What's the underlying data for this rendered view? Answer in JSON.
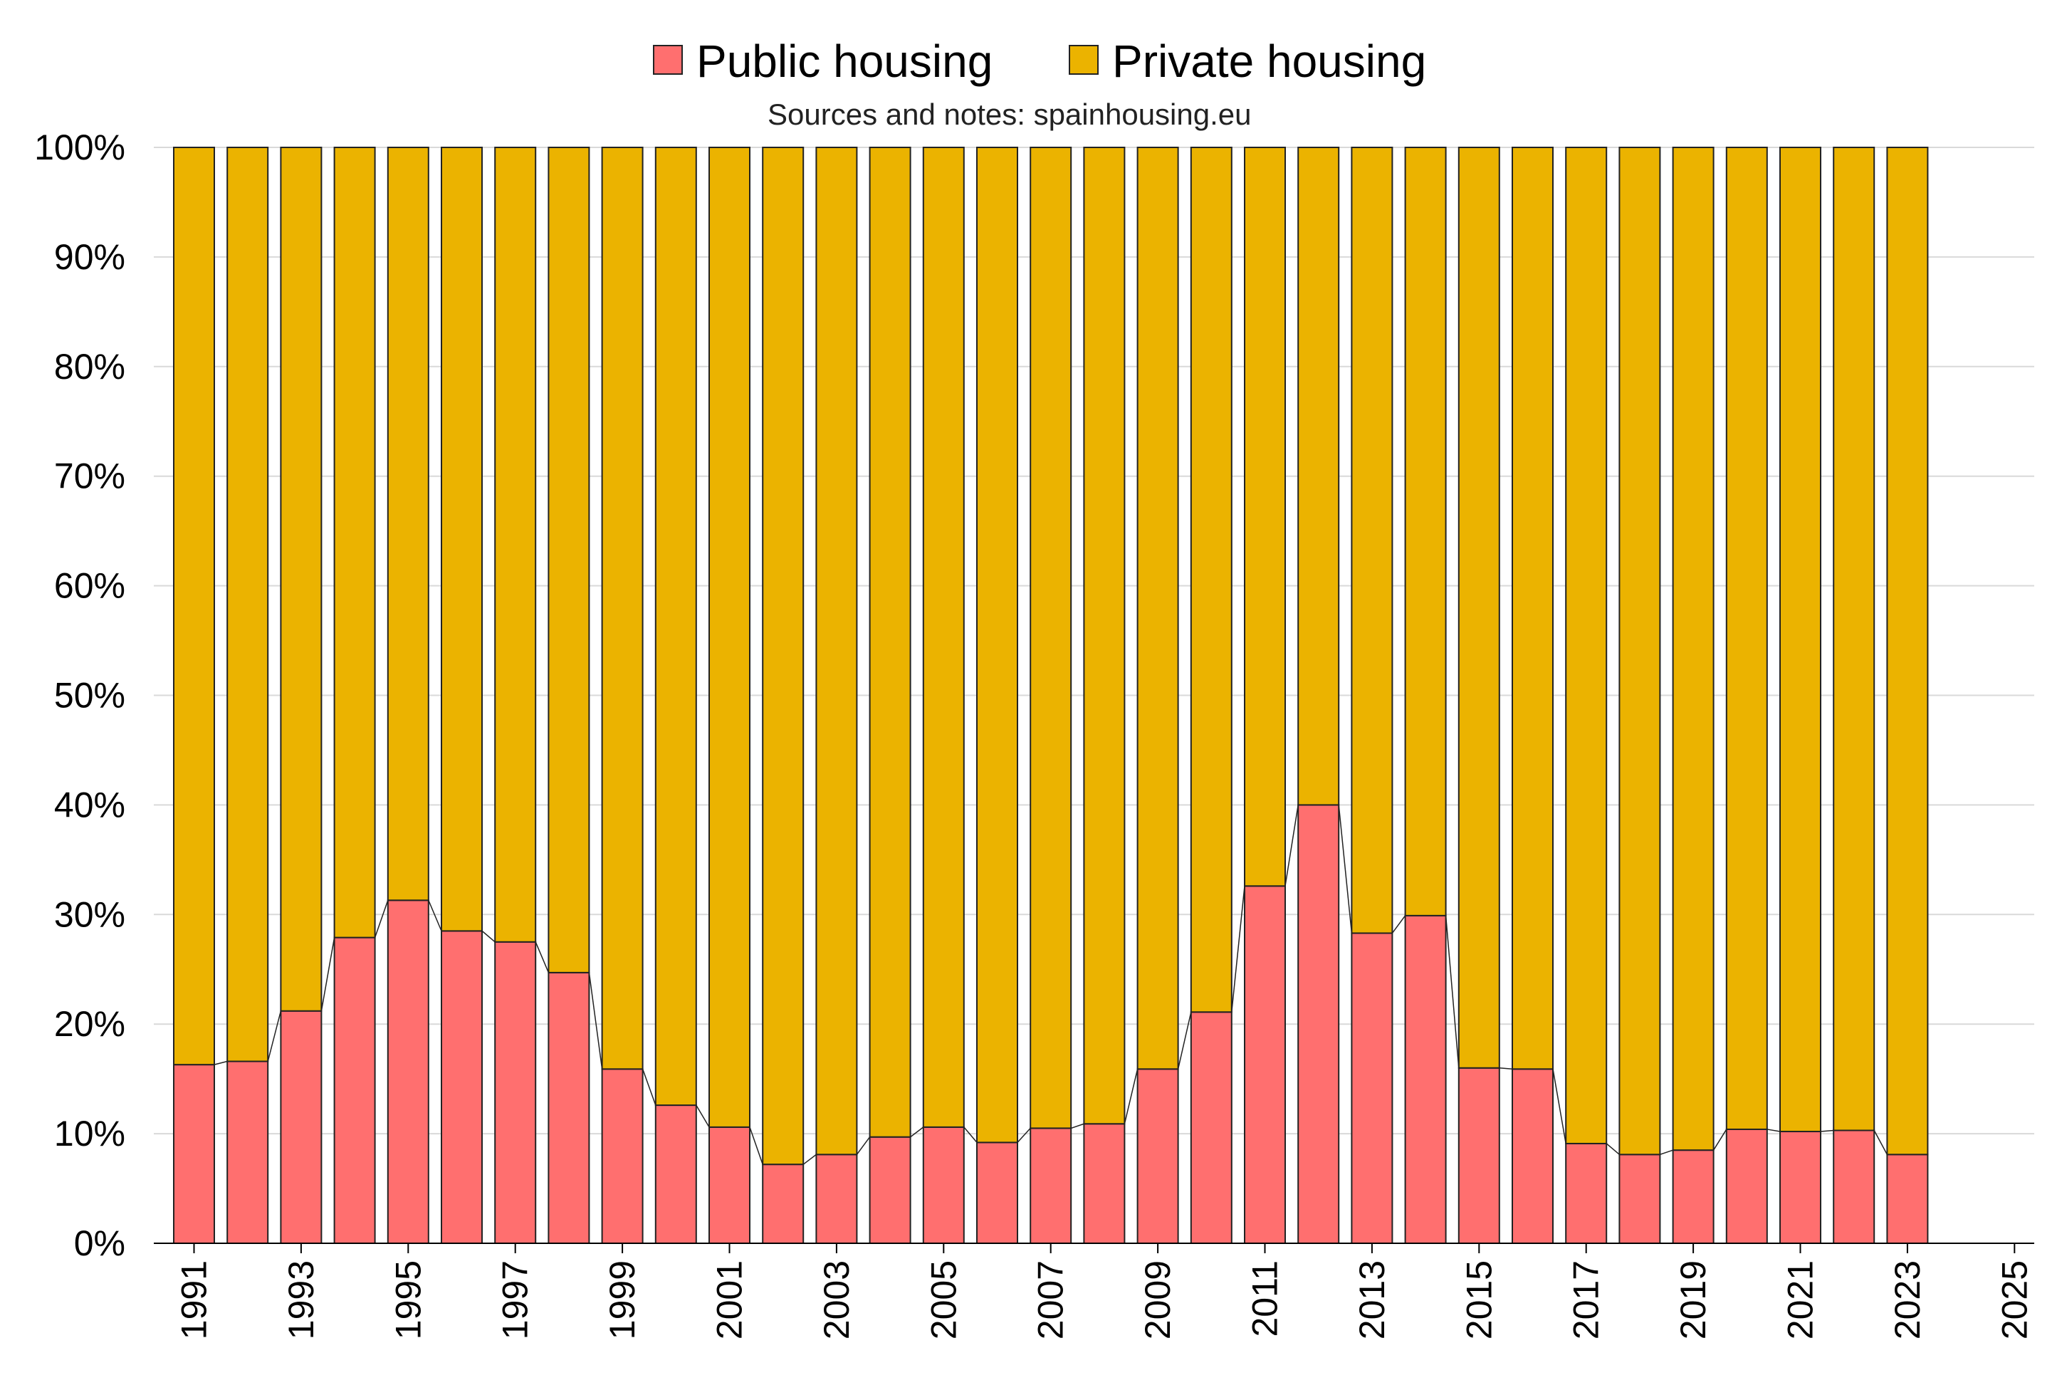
{
  "legend": {
    "public_label": "Public housing",
    "private_label": "Private housing"
  },
  "subtitle": "Sources and notes: spainhousing.eu",
  "colors": {
    "public": "#ff6f6f",
    "private": "#ebb300",
    "bar_stroke": "#222222",
    "grid": "#d9d9d9",
    "axis": "#000000"
  },
  "chart_data": {
    "type": "bar",
    "stacked": "percent",
    "categories": [
      "1991",
      "1992",
      "1993",
      "1994",
      "1995",
      "1996",
      "1997",
      "1998",
      "1999",
      "2000",
      "2001",
      "2002",
      "2003",
      "2004",
      "2005",
      "2006",
      "2007",
      "2008",
      "2009",
      "2010",
      "2011",
      "2012",
      "2013",
      "2014",
      "2015",
      "2016",
      "2017",
      "2018",
      "2019",
      "2020",
      "2021",
      "2022",
      "2023"
    ],
    "series": [
      {
        "name": "Public housing",
        "values": [
          16.3,
          16.6,
          21.2,
          27.9,
          31.3,
          28.5,
          27.5,
          24.7,
          15.9,
          12.6,
          10.6,
          7.2,
          8.1,
          9.7,
          10.6,
          9.2,
          10.5,
          10.9,
          15.9,
          21.1,
          32.6,
          40.0,
          28.3,
          29.9,
          16.0,
          15.9,
          9.1,
          8.1,
          8.5,
          10.4,
          10.2,
          10.3,
          8.1
        ]
      },
      {
        "name": "Private housing",
        "values": [
          83.7,
          83.4,
          78.8,
          72.1,
          68.7,
          71.5,
          72.5,
          75.3,
          84.1,
          87.4,
          89.4,
          92.8,
          91.9,
          90.3,
          89.4,
          90.8,
          89.5,
          89.1,
          84.1,
          78.9,
          67.4,
          60.0,
          71.7,
          70.1,
          84.0,
          84.1,
          90.9,
          91.9,
          91.5,
          89.6,
          89.8,
          89.7,
          91.9
        ]
      }
    ],
    "x_tick_labels": [
      "1991",
      "1993",
      "1995",
      "1997",
      "1999",
      "2001",
      "2003",
      "2005",
      "2007",
      "2009",
      "2011",
      "2013",
      "2015",
      "2017",
      "2019",
      "2021",
      "2023",
      "2025"
    ],
    "y_tick_labels": [
      "0%",
      "10%",
      "20%",
      "30%",
      "40%",
      "50%",
      "60%",
      "70%",
      "80%",
      "90%",
      "100%"
    ],
    "ylim": [
      0,
      100
    ],
    "xlim": [
      1991,
      2025
    ],
    "grid": true,
    "legend_position": "top-center",
    "public_connector_line": true
  }
}
